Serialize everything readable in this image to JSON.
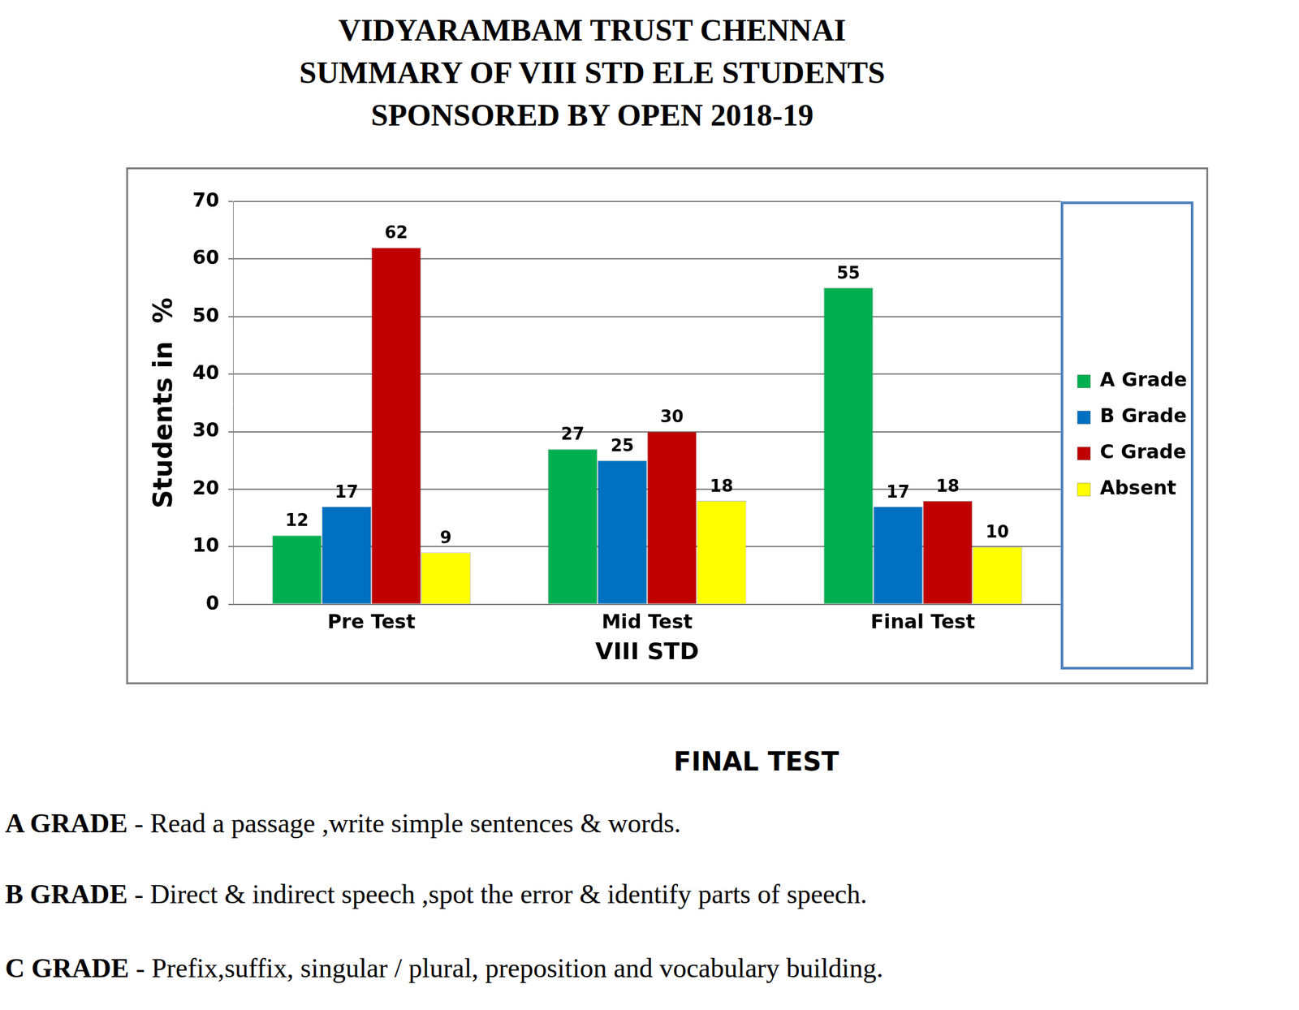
{
  "header": {
    "lines": [
      "VIDYARAMBAM TRUST CHENNAI",
      "SUMMARY OF VIII STD ELE STUDENTS",
      "SPONSORED BY OPEN 2018-19"
    ]
  },
  "chart_data": {
    "type": "bar",
    "x_label": "VIII STD",
    "y_label": "Students in  %",
    "categories": [
      "Pre Test",
      "Mid Test",
      "Final Test"
    ],
    "series": [
      {
        "name": "A Grade",
        "color": "#00b050",
        "values": [
          12,
          27,
          55
        ]
      },
      {
        "name": "B Grade",
        "color": "#0070c0",
        "values": [
          17,
          25,
          17
        ]
      },
      {
        "name": "C Grade",
        "color": "#c00000",
        "values": [
          62,
          30,
          18
        ]
      },
      {
        "name": "Absent",
        "color": "#ffff00",
        "values": [
          9,
          18,
          10
        ]
      }
    ],
    "ylim": [
      0,
      70
    ],
    "yticks": [
      0,
      10,
      20,
      30,
      40,
      50,
      60,
      70
    ],
    "grid": true,
    "legend": "right",
    "data_labels": true
  },
  "notes": {
    "title": "FINAL TEST",
    "items": [
      {
        "label": "A GRADE",
        "text": " - Read a passage ,write simple sentences & words."
      },
      {
        "label": "B GRADE",
        "text": " - Direct & indirect speech ,spot the error & identify parts of speech."
      },
      {
        "label": "C GRADE",
        "text": " - Prefix,suffix, singular / plural, preposition and vocabulary building."
      }
    ]
  }
}
